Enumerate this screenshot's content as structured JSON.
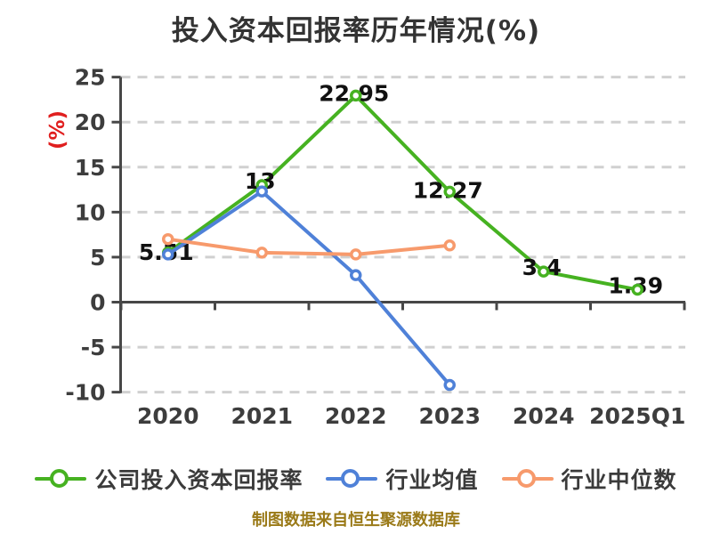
{
  "title": "投入资本回报率历年情况(%)",
  "footer": "制图数据来自恒生聚源数据库",
  "colors": {
    "company_green": "#46b221",
    "industry_avg_blue": "#4f81d8",
    "industry_median_orange": "#f79a6c",
    "grid": "#d0d0d0",
    "axis": "#474747",
    "axis_text": "#3d3d3d",
    "data_label": "#111111",
    "y_unit_red": "#e01f1f",
    "footer_text": "#9a7a18",
    "title_text": "#333333"
  },
  "chart_data": {
    "type": "line",
    "title": "投入资本回报率历年情况(%)",
    "xlabel": "",
    "ylabel": "(%)",
    "categories": [
      "2020",
      "2021",
      "2022",
      "2023",
      "2024",
      "2025Q1"
    ],
    "y_ticks": [
      25,
      20,
      15,
      10,
      5,
      0,
      -5,
      -10
    ],
    "ylim": [
      -10,
      25
    ],
    "grid": "horizontal-dashed",
    "legend_position": "bottom",
    "series": [
      {
        "key": "company-roic",
        "name": "公司投入资本回报率",
        "color": "#46b221",
        "values": [
          5.51,
          13,
          22.95,
          12.27,
          3.4,
          1.39
        ],
        "labels": [
          "5.51",
          "13",
          "22.95",
          "12.27",
          "3.4",
          "1.39"
        ]
      },
      {
        "key": "industry-average",
        "name": "行业均值",
        "color": "#4f81d8",
        "values": [
          5.3,
          12.3,
          3.0,
          -9.2,
          null,
          null
        ],
        "labels": []
      },
      {
        "key": "industry-median",
        "name": "行业中位数",
        "color": "#f79a6c",
        "values": [
          7.0,
          5.5,
          5.3,
          6.3,
          null,
          null
        ],
        "labels": []
      }
    ]
  }
}
